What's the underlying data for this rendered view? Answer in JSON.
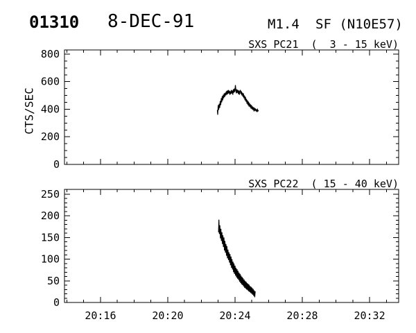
{
  "page": {
    "background": "#ffffff",
    "ink": "#000000"
  },
  "header": {
    "event_number": "01310",
    "date": "8-DEC-91",
    "goes_class": "M1.4",
    "flare_type_location": "SF (N10E57)"
  },
  "chart_data": [
    {
      "type": "line",
      "title": "SXS PC21  (  3 - 15 keV)",
      "instrument": "SXS PC21",
      "energy_range_keV": [
        3,
        15
      ],
      "ylabel": "CTS/SEC",
      "xlim_minutes_after_2000": [
        13.86,
        33.73
      ],
      "ylim": [
        0,
        830
      ],
      "yticks": [
        0,
        200,
        400,
        600,
        800
      ],
      "ytick_minor_step": 50,
      "xticks_minutes": [
        16,
        20,
        24,
        28,
        32
      ],
      "xtick_labels": [
        "20:16",
        "20:20",
        "20:24",
        "20:28",
        "20:32"
      ],
      "xtick_minor_step": 1,
      "x_labels_visible": false,
      "grid": false,
      "series": [
        {
          "name": "SXS PC21 counts",
          "points": [
            [
              22.95,
              395
            ],
            [
              22.97,
              360
            ],
            [
              23.0,
              430
            ],
            [
              23.03,
              395
            ],
            [
              23.06,
              440
            ],
            [
              23.09,
              410
            ],
            [
              23.12,
              460
            ],
            [
              23.15,
              430
            ],
            [
              23.18,
              480
            ],
            [
              23.21,
              450
            ],
            [
              23.24,
              495
            ],
            [
              23.27,
              465
            ],
            [
              23.3,
              505
            ],
            [
              23.33,
              480
            ],
            [
              23.36,
              515
            ],
            [
              23.39,
              490
            ],
            [
              23.42,
              520
            ],
            [
              23.45,
              500
            ],
            [
              23.48,
              530
            ],
            [
              23.51,
              505
            ],
            [
              23.54,
              535
            ],
            [
              23.57,
              510
            ],
            [
              23.6,
              540
            ],
            [
              23.63,
              515
            ],
            [
              23.66,
              535
            ],
            [
              23.69,
              505
            ],
            [
              23.72,
              530
            ],
            [
              23.75,
              510
            ],
            [
              23.78,
              540
            ],
            [
              23.81,
              515
            ],
            [
              23.84,
              535
            ],
            [
              23.87,
              505
            ],
            [
              23.9,
              545
            ],
            [
              23.93,
              520
            ],
            [
              23.96,
              550
            ],
            [
              23.99,
              525
            ],
            [
              24.02,
              575
            ],
            [
              24.05,
              540
            ],
            [
              24.08,
              515
            ],
            [
              24.11,
              545
            ],
            [
              24.14,
              520
            ],
            [
              24.17,
              540
            ],
            [
              24.2,
              510
            ],
            [
              24.23,
              535
            ],
            [
              24.26,
              505
            ],
            [
              24.29,
              530
            ],
            [
              24.32,
              540
            ],
            [
              24.35,
              510
            ],
            [
              24.38,
              530
            ],
            [
              24.41,
              500
            ],
            [
              24.44,
              520
            ],
            [
              24.47,
              490
            ],
            [
              24.5,
              515
            ],
            [
              24.53,
              480
            ],
            [
              24.56,
              500
            ],
            [
              24.59,
              465
            ],
            [
              24.62,
              490
            ],
            [
              24.65,
              455
            ],
            [
              24.68,
              475
            ],
            [
              24.71,
              440
            ],
            [
              24.74,
              465
            ],
            [
              24.77,
              430
            ],
            [
              24.8,
              455
            ],
            [
              24.83,
              420
            ],
            [
              24.86,
              445
            ],
            [
              24.89,
              415
            ],
            [
              24.92,
              435
            ],
            [
              24.95,
              405
            ],
            [
              24.98,
              430
            ],
            [
              25.01,
              400
            ],
            [
              25.04,
              420
            ],
            [
              25.07,
              395
            ],
            [
              25.1,
              415
            ],
            [
              25.13,
              385
            ],
            [
              25.16,
              410
            ],
            [
              25.19,
              390
            ],
            [
              25.22,
              405
            ],
            [
              25.25,
              385
            ],
            [
              25.28,
              400
            ],
            [
              25.31,
              380
            ],
            [
              25.34,
              398
            ],
            [
              25.37,
              388
            ],
            [
              25.4,
              392
            ]
          ]
        }
      ]
    },
    {
      "type": "line",
      "title": "SXS PC22  ( 15 - 40 keV)",
      "instrument": "SXS PC22",
      "energy_range_keV": [
        15,
        40
      ],
      "ylabel": "",
      "xlim_minutes_after_2000": [
        13.86,
        33.73
      ],
      "ylim": [
        0,
        261
      ],
      "yticks": [
        0,
        50,
        100,
        150,
        200,
        250
      ],
      "ytick_minor_step": 10,
      "xticks_minutes": [
        16,
        20,
        24,
        28,
        32
      ],
      "xtick_labels": [
        "20:16",
        "20:20",
        "20:24",
        "20:28",
        "20:32"
      ],
      "xtick_minor_step": 1,
      "x_labels_visible": true,
      "grid": false,
      "series": [
        {
          "name": "SXS PC22 counts",
          "points": [
            [
              23.02,
              162
            ],
            [
              23.04,
              191
            ],
            [
              23.07,
              158
            ],
            [
              23.1,
              178
            ],
            [
              23.13,
              148
            ],
            [
              23.16,
              170
            ],
            [
              23.19,
              142
            ],
            [
              23.22,
              162
            ],
            [
              23.25,
              135
            ],
            [
              23.28,
              155
            ],
            [
              23.31,
              128
            ],
            [
              23.34,
              150
            ],
            [
              23.37,
              120
            ],
            [
              23.4,
              142
            ],
            [
              23.43,
              115
            ],
            [
              23.46,
              135
            ],
            [
              23.49,
              108
            ],
            [
              23.52,
              130
            ],
            [
              23.55,
              102
            ],
            [
              23.58,
              122
            ],
            [
              23.61,
              98
            ],
            [
              23.64,
              116
            ],
            [
              23.67,
              92
            ],
            [
              23.7,
              112
            ],
            [
              23.73,
              86
            ],
            [
              23.76,
              106
            ],
            [
              23.79,
              80
            ],
            [
              23.82,
              100
            ],
            [
              23.85,
              76
            ],
            [
              23.88,
              94
            ],
            [
              23.91,
              70
            ],
            [
              23.94,
              90
            ],
            [
              23.97,
              66
            ],
            [
              24.0,
              85
            ],
            [
              24.03,
              62
            ],
            [
              24.06,
              80
            ],
            [
              24.09,
              58
            ],
            [
              24.12,
              77
            ],
            [
              24.15,
              55
            ],
            [
              24.18,
              73
            ],
            [
              24.21,
              52
            ],
            [
              24.24,
              69
            ],
            [
              24.27,
              48
            ],
            [
              24.3,
              66
            ],
            [
              24.33,
              45
            ],
            [
              24.36,
              62
            ],
            [
              24.39,
              42
            ],
            [
              24.42,
              59
            ],
            [
              24.45,
              40
            ],
            [
              24.48,
              56
            ],
            [
              24.51,
              37
            ],
            [
              24.54,
              53
            ],
            [
              24.57,
              34
            ],
            [
              24.6,
              50
            ],
            [
              24.63,
              32
            ],
            [
              24.66,
              48
            ],
            [
              24.69,
              30
            ],
            [
              24.72,
              45
            ],
            [
              24.75,
              28
            ],
            [
              24.78,
              43
            ],
            [
              24.81,
              26
            ],
            [
              24.84,
              41
            ],
            [
              24.87,
              24
            ],
            [
              24.9,
              38
            ],
            [
              24.93,
              22
            ],
            [
              24.96,
              36
            ],
            [
              24.99,
              20
            ],
            [
              25.02,
              34
            ],
            [
              25.05,
              18
            ],
            [
              25.08,
              31
            ],
            [
              25.11,
              15
            ],
            [
              25.14,
              28
            ],
            [
              25.17,
              12
            ],
            [
              25.2,
              26
            ]
          ]
        }
      ]
    }
  ]
}
